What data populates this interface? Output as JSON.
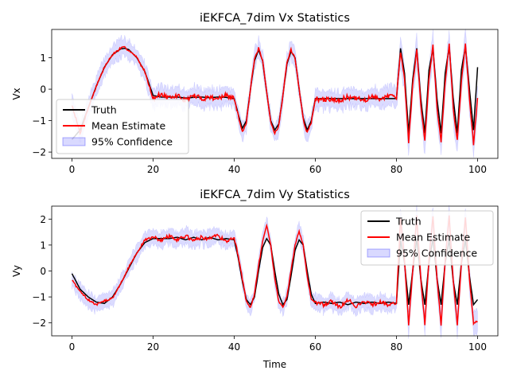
{
  "chart_data": [
    {
      "type": "line",
      "title": "iEKFCA_7dim Vx Statistics",
      "xlabel": "",
      "ylabel": "Vx",
      "xlim": [
        -5,
        105
      ],
      "ylim": [
        -2.2,
        1.9
      ],
      "xticks": [
        0,
        20,
        40,
        60,
        80,
        100
      ],
      "yticks": [
        -2,
        -1,
        0,
        1
      ],
      "legend_position": "lower-left",
      "legend": [
        "Truth",
        "Mean Estimate",
        "95% Confidence"
      ],
      "colors": {
        "truth": "#000000",
        "estimate": "#ff0000",
        "band": "#0000ff"
      },
      "x": [
        0,
        2,
        4,
        6,
        8,
        10,
        12,
        13,
        14,
        16,
        18,
        20,
        22,
        24,
        26,
        28,
        30,
        32,
        34,
        36,
        38,
        40,
        41,
        42,
        43,
        44,
        45,
        46,
        47,
        48,
        49,
        50,
        51,
        52,
        53,
        54,
        55,
        56,
        57,
        58,
        59,
        60,
        62,
        64,
        66,
        68,
        70,
        72,
        74,
        76,
        78,
        80,
        81,
        82,
        83,
        84,
        85,
        86,
        87,
        88,
        89,
        90,
        91,
        92,
        93,
        94,
        95,
        96,
        97,
        98,
        99,
        100
      ],
      "series": [
        {
          "name": "Truth",
          "values": [
            -1.6,
            -1.3,
            -0.6,
            0.1,
            0.7,
            1.1,
            1.28,
            1.3,
            1.26,
            1.0,
            0.55,
            -0.2,
            -0.25,
            -0.25,
            -0.25,
            -0.28,
            -0.26,
            -0.25,
            -0.27,
            -0.25,
            -0.26,
            -0.3,
            -0.8,
            -1.25,
            -1.0,
            0.0,
            0.9,
            1.25,
            0.9,
            -0.1,
            -1.0,
            -1.3,
            -1.1,
            -0.2,
            0.8,
            1.2,
            1.0,
            0.0,
            -0.9,
            -1.3,
            -1.0,
            -0.3,
            -0.3,
            -0.3,
            -0.3,
            -0.3,
            -0.3,
            -0.3,
            -0.3,
            -0.3,
            -0.3,
            -0.3,
            1.3,
            0.5,
            -1.4,
            0.3,
            1.3,
            -0.3,
            -1.4,
            0.6,
            1.3,
            -0.3,
            -1.4,
            0.5,
            1.35,
            -0.3,
            -1.4,
            0.6,
            1.35,
            0.0,
            -1.3,
            0.7
          ]
        },
        {
          "name": "Mean Estimate",
          "values": [
            -0.5,
            -1.4,
            -0.6,
            0.1,
            0.7,
            1.1,
            1.3,
            1.32,
            1.25,
            1.0,
            0.55,
            -0.3,
            -0.15,
            -0.3,
            -0.2,
            -0.35,
            -0.2,
            -0.3,
            -0.25,
            -0.3,
            -0.2,
            -0.3,
            -0.85,
            -1.35,
            -1.05,
            0.0,
            0.95,
            1.3,
            0.9,
            -0.1,
            -1.05,
            -1.4,
            -1.15,
            -0.2,
            0.85,
            1.25,
            1.0,
            0.0,
            -0.95,
            -1.4,
            -1.05,
            -0.3,
            -0.35,
            -0.3,
            -0.35,
            -0.25,
            -0.3,
            -0.35,
            -0.25,
            -0.3,
            -0.2,
            -0.3,
            1.2,
            0.3,
            -1.7,
            0.1,
            1.3,
            -0.5,
            -1.65,
            0.3,
            1.4,
            -0.6,
            -1.65,
            0.2,
            1.45,
            -0.6,
            -1.65,
            0.2,
            1.45,
            -0.3,
            -1.75,
            -0.3
          ]
        }
      ]
    },
    {
      "type": "line",
      "title": "iEKFCA_7dim Vy Statistics",
      "xlabel": "Time",
      "ylabel": "Vy",
      "xlim": [
        -5,
        105
      ],
      "ylim": [
        -2.5,
        2.5
      ],
      "xticks": [
        0,
        20,
        40,
        60,
        80,
        100
      ],
      "yticks": [
        -2,
        -1,
        0,
        1,
        2
      ],
      "legend_position": "upper-right",
      "legend": [
        "Truth",
        "Mean Estimate",
        "95% Confidence"
      ],
      "colors": {
        "truth": "#000000",
        "estimate": "#ff0000",
        "band": "#0000ff"
      },
      "x": [
        0,
        2,
        4,
        6,
        8,
        10,
        12,
        14,
        16,
        18,
        20,
        22,
        24,
        26,
        28,
        30,
        32,
        34,
        36,
        38,
        40,
        41,
        42,
        43,
        44,
        45,
        46,
        47,
        48,
        49,
        50,
        51,
        52,
        53,
        54,
        55,
        56,
        57,
        58,
        59,
        60,
        62,
        64,
        66,
        68,
        70,
        72,
        74,
        76,
        78,
        80,
        81,
        82,
        83,
        84,
        85,
        86,
        87,
        88,
        89,
        90,
        91,
        92,
        93,
        94,
        95,
        96,
        97,
        98,
        99,
        100
      ],
      "series": [
        {
          "name": "Truth",
          "values": [
            -0.1,
            -0.7,
            -1.0,
            -1.2,
            -1.25,
            -1.0,
            -0.5,
            0.1,
            0.7,
            1.1,
            1.25,
            1.25,
            1.25,
            1.3,
            1.2,
            1.3,
            1.2,
            1.3,
            1.2,
            1.25,
            1.2,
            0.5,
            -0.4,
            -1.1,
            -1.3,
            -1.0,
            0.0,
            0.9,
            1.25,
            1.0,
            0.0,
            -0.9,
            -1.3,
            -1.1,
            -0.2,
            0.8,
            1.2,
            1.0,
            0.0,
            -0.9,
            -1.25,
            -1.2,
            -1.25,
            -1.2,
            -1.3,
            -1.2,
            -1.25,
            -1.2,
            -1.25,
            -1.2,
            -1.25,
            1.2,
            0.3,
            -1.3,
            0.0,
            1.25,
            -0.3,
            -1.3,
            0.3,
            1.25,
            -0.3,
            -1.3,
            0.3,
            1.2,
            -0.4,
            -1.3,
            0.3,
            1.2,
            -0.2,
            -1.3,
            -1.1
          ]
        },
        {
          "name": "Mean Estimate",
          "values": [
            -0.35,
            -0.8,
            -1.1,
            -1.3,
            -1.15,
            -1.05,
            -0.5,
            0.15,
            0.7,
            1.2,
            1.3,
            1.2,
            1.35,
            1.2,
            1.35,
            1.15,
            1.3,
            1.25,
            1.35,
            1.15,
            1.25,
            0.6,
            -0.3,
            -1.2,
            -1.4,
            -0.9,
            0.2,
            1.1,
            1.75,
            1.0,
            -0.3,
            -1.2,
            -1.4,
            -1.0,
            0.0,
            1.0,
            1.55,
            1.0,
            -0.2,
            -1.1,
            -1.2,
            -1.3,
            -1.15,
            -1.4,
            -1.1,
            -1.35,
            -1.2,
            -1.3,
            -1.2,
            -1.3,
            -1.2,
            2.05,
            0.4,
            -2.1,
            0.0,
            2.1,
            -0.3,
            -2.05,
            0.4,
            2.1,
            -0.3,
            -2.1,
            0.4,
            2.1,
            -0.4,
            -2.1,
            0.3,
            2.1,
            -0.3,
            -2.0,
            -1.95
          ]
        }
      ]
    }
  ]
}
